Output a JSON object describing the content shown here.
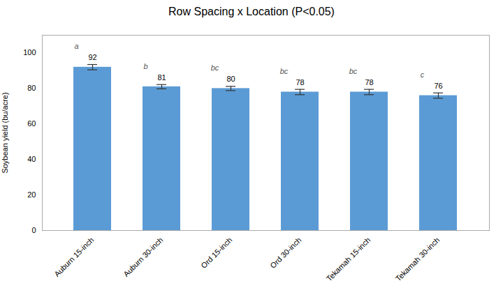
{
  "chart_data": {
    "type": "bar",
    "title": "Row Spacing x Location (P<0.05)",
    "ylabel": "Soybean yield (bu/acre)",
    "categories": [
      "Auburn 15-inch",
      "Auburn 30-inch",
      "Ord 15-inch",
      "Ord 30-inch",
      "Tekamah 15-inch",
      "Tekamah 30-inch"
    ],
    "values": [
      92,
      81,
      80,
      78,
      78,
      76
    ],
    "errors": [
      1.5,
      1.2,
      1.2,
      1.5,
      1.5,
      1.5
    ],
    "letters": [
      "a",
      "b",
      "bc",
      "bc",
      "bc",
      "c"
    ],
    "color": "#5B9BD5",
    "ylim": [
      0,
      110
    ],
    "yticks": [
      0,
      20,
      40,
      60,
      80,
      100
    ],
    "data_labels": true
  }
}
